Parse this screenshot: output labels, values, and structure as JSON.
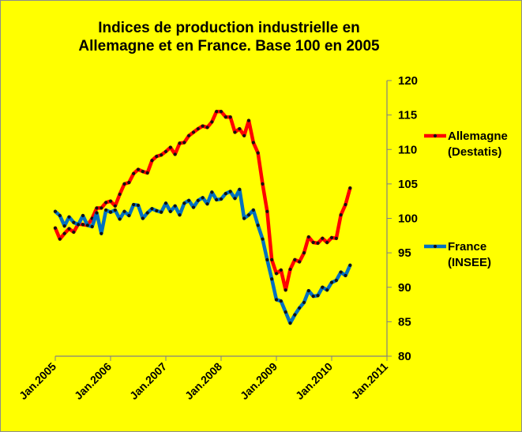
{
  "chart_data": {
    "type": "line",
    "title_line1": "Indices de production industrielle en",
    "title_line2": "Allemagne et en France. Base 100 en 2005",
    "ylim": [
      80,
      120
    ],
    "y_ticks": [
      "80",
      "85",
      "90",
      "95",
      "100",
      "105",
      "110",
      "115",
      "120"
    ],
    "x_ticks": [
      "Jan.2005",
      "Jan.2006",
      "Jan.2007",
      "Jan.2008",
      "Jan.2009",
      "Jan.2010",
      "Jan.2011"
    ],
    "grid": false,
    "legend_placement": "right",
    "x_start_month_index": 0,
    "series": [
      {
        "name_line1": "Allemagne",
        "name_line2": "(Destatis)",
        "color": "#ff0000",
        "values": [
          98.6,
          97.0,
          97.8,
          98.5,
          98.0,
          99.2,
          99.1,
          99.0,
          100.0,
          101.5,
          101.5,
          102.3,
          102.5,
          101.8,
          103.5,
          105.0,
          105.2,
          106.5,
          107.1,
          106.8,
          106.6,
          108.4,
          109.0,
          109.2,
          109.7,
          110.3,
          109.3,
          110.9,
          111.0,
          112.0,
          112.5,
          113.0,
          113.4,
          113.2,
          114.0,
          115.5,
          115.5,
          114.7,
          114.7,
          112.5,
          113.0,
          112.0,
          114.2,
          111.0,
          109.5,
          105.0,
          101.0,
          94.0,
          92.0,
          92.5,
          89.6,
          92.6,
          94.0,
          93.7,
          95.0,
          97.3,
          96.5,
          96.4,
          97.1,
          96.5,
          97.2,
          97.1,
          100.5,
          102.0,
          104.4
        ]
      },
      {
        "name_line1": "France",
        "name_line2": "(INSEE)",
        "color": "#0070c0",
        "values": [
          101.0,
          100.4,
          98.9,
          100.2,
          99.4,
          99.1,
          100.4,
          99.0,
          98.8,
          100.8,
          97.8,
          101.2,
          100.9,
          101.2,
          99.9,
          101.0,
          100.4,
          102.0,
          101.9,
          100.0,
          100.8,
          101.4,
          101.1,
          100.9,
          102.2,
          101.0,
          101.8,
          100.5,
          102.2,
          102.6,
          101.6,
          102.6,
          103.0,
          102.1,
          103.8,
          102.7,
          102.8,
          103.6,
          103.9,
          102.9,
          104.2,
          100.0,
          100.5,
          101.2,
          99.0,
          97.0,
          94.0,
          91.2,
          88.2,
          88.0,
          86.4,
          84.8,
          86.0,
          87.0,
          87.8,
          89.5,
          88.7,
          88.8,
          90.0,
          89.6,
          90.7,
          91.0,
          92.2,
          91.7,
          93.2
        ]
      }
    ]
  }
}
